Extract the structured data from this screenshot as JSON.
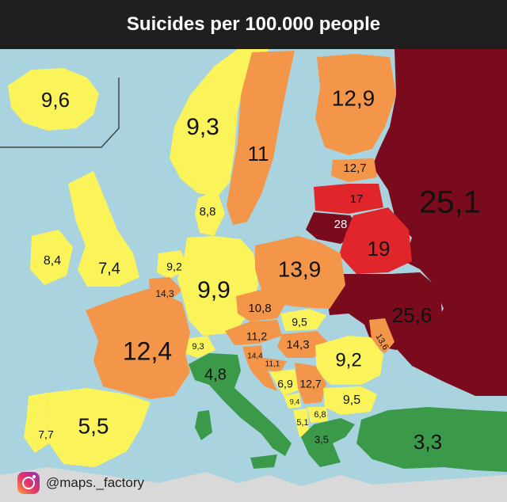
{
  "title": "Suicides per 100.000 people",
  "credit": "@maps._factory",
  "colors": {
    "sea": "#a9d3de",
    "light_yellow": "#fbf35a",
    "yellow": "#f7e600",
    "orange": "#f3964a",
    "red": "#e0252b",
    "dark_red": "#7a0b1c",
    "green": "#3a9a4a",
    "gray": "#d9d9d9"
  },
  "values": {
    "iceland": "9,6",
    "norway": "9,3",
    "sweden": "11",
    "finland": "12,9",
    "estonia": "12,7",
    "latvia": "17",
    "lithuania": "28",
    "russia": "25,1",
    "denmark": "8,8",
    "ireland": "8,4",
    "uk": "7,4",
    "netherlands": "9,2",
    "belgium": "14,3",
    "germany": "9,9",
    "poland": "13,9",
    "belarus": "19",
    "ukraine": "25,6",
    "czechia": "10,8",
    "slovakia": "9,5",
    "austria": "11,2",
    "hungary": "14,3",
    "moldova": "13,6",
    "switzerland": "9,3",
    "slovenia": "14,4",
    "croatia": "11,1",
    "romania": "9,2",
    "france": "12,4",
    "italy": "4,8",
    "bosnia": "6,9",
    "serbia": "12,7",
    "montenegro": "9,4",
    "bulgaria": "9,5",
    "north_macedonia": "6,8",
    "albania": "5,1",
    "greece": "3,5",
    "turkey": "3,3",
    "spain": "5,5",
    "portugal": "7,7"
  }
}
